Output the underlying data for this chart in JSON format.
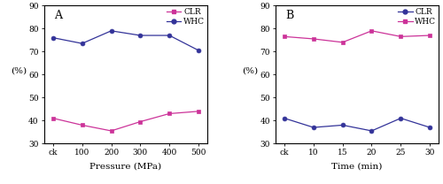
{
  "panel_A": {
    "label": "A",
    "xlabel": "Pressure (MPa)",
    "ylabel": "(%)",
    "x_labels": [
      "ck",
      "100",
      "200",
      "300",
      "400",
      "500"
    ],
    "x_numeric": [
      0,
      1,
      2,
      3,
      4,
      5
    ],
    "CLR_values": [
      41,
      38,
      35.5,
      39.5,
      43,
      44
    ],
    "WHC_values": [
      76,
      73.5,
      79,
      77,
      77,
      70.5
    ],
    "CLR_color": "#cc3399",
    "WHC_color": "#333399",
    "CLR_marker": "s",
    "WHC_marker": "o",
    "ylim": [
      30,
      90
    ],
    "yticks": [
      30,
      40,
      50,
      60,
      70,
      80,
      90
    ]
  },
  "panel_B": {
    "label": "B",
    "xlabel": "Time (min)",
    "ylabel": "(%)",
    "x_labels": [
      "ck",
      "10",
      "15",
      "20",
      "25",
      "30"
    ],
    "x_numeric": [
      0,
      1,
      2,
      3,
      4,
      5
    ],
    "CLR_values": [
      41,
      37,
      38,
      35.5,
      41,
      37
    ],
    "WHC_values": [
      76.5,
      75.5,
      74,
      79,
      76.5,
      77
    ],
    "CLR_color": "#333399",
    "WHC_color": "#cc3399",
    "CLR_marker": "o",
    "WHC_marker": "s",
    "ylim": [
      30,
      90
    ],
    "yticks": [
      30,
      40,
      50,
      60,
      70,
      80,
      90
    ]
  }
}
